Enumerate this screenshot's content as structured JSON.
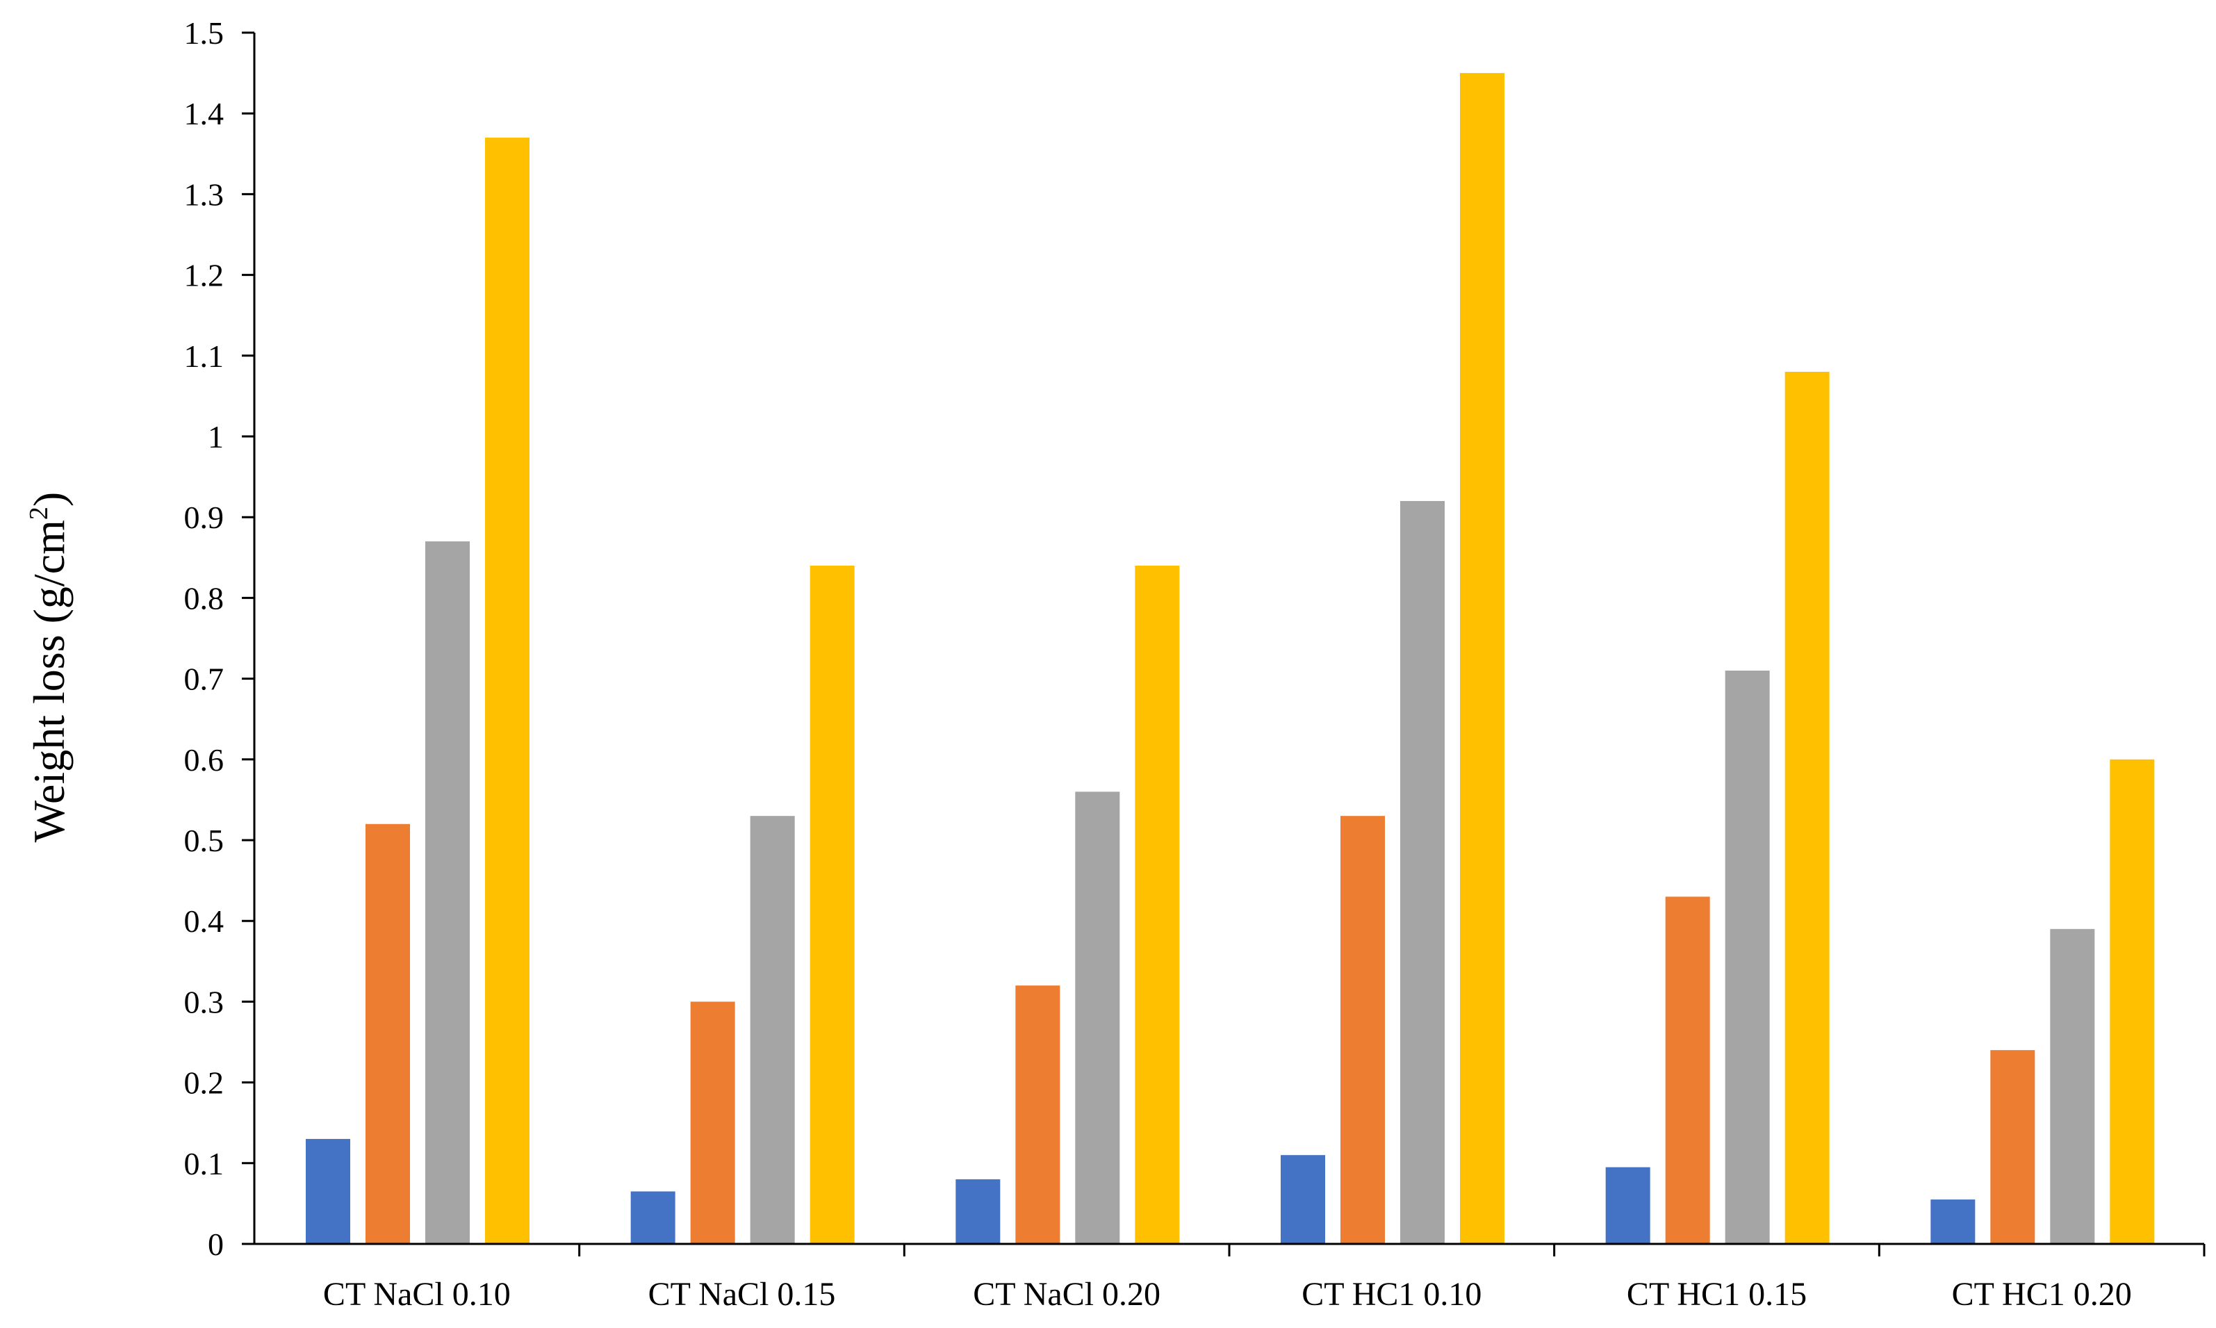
{
  "chart_data": {
    "type": "bar",
    "title": "",
    "xlabel": "",
    "ylabel": {
      "main": "Weight loss (g/cm",
      "sup": "2",
      "tail": ")"
    },
    "ylim": [
      0,
      1.5
    ],
    "yticks": [
      "0",
      "0.1",
      "0.2",
      "0.3",
      "0.4",
      "0.5",
      "0.6",
      "0.7",
      "0.8",
      "0.9",
      "1",
      "1.1",
      "1.2",
      "1.3",
      "1.4",
      "1.5"
    ],
    "grid": false,
    "legend": "none",
    "categories": [
      "CT NaCl 0.10",
      "CT NaCl 0.15",
      "CT NaCl 0.20",
      "CT HC1 0.10",
      "CT HC1 0.15",
      "CT HC1 0.20"
    ],
    "series": [
      {
        "color": "#4472C4",
        "values": [
          0.13,
          0.065,
          0.08,
          0.11,
          0.095,
          0.055
        ]
      },
      {
        "color": "#ED7D31",
        "values": [
          0.52,
          0.3,
          0.32,
          0.53,
          0.43,
          0.24
        ]
      },
      {
        "color": "#A5A5A5",
        "values": [
          0.87,
          0.53,
          0.56,
          0.92,
          0.71,
          0.39
        ]
      },
      {
        "color": "#FFC000",
        "values": [
          1.37,
          0.84,
          0.84,
          1.45,
          1.08,
          0.6
        ]
      }
    ]
  }
}
